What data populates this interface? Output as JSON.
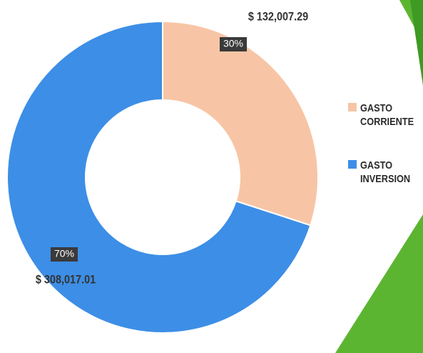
{
  "chart_data": {
    "type": "donut",
    "categories": [
      "GASTO CORRIENTE",
      "GASTO INVERSION"
    ],
    "values": [
      132007.29,
      308017.01
    ],
    "value_labels": [
      "$ 132,007.29",
      "$ 308,017.01"
    ],
    "percentages": [
      30,
      70
    ],
    "percentage_labels": [
      "30%",
      "70%"
    ],
    "colors": [
      "#f7c5a5",
      "#3d8ee6"
    ],
    "legend": "right"
  }
}
